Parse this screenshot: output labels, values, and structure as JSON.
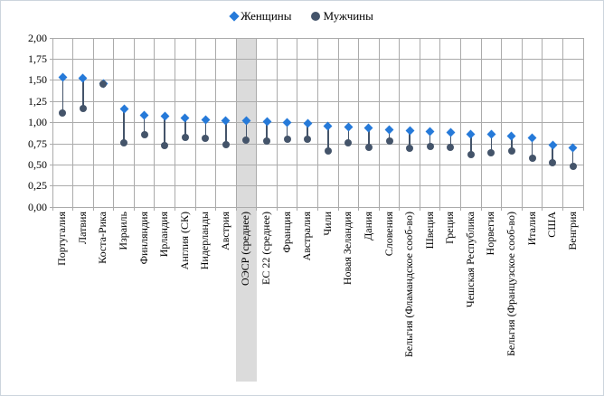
{
  "legend": {
    "women": "Женщины",
    "men": "Мужчины"
  },
  "colors": {
    "women": "#267AD9",
    "men": "#44546A",
    "grid": "#ABABAB",
    "highlight_band": "#DBDBDB",
    "text": "#000000",
    "frame": "#CCD5DD"
  },
  "chart_data": {
    "type": "scatter",
    "title": "",
    "xlabel": "",
    "ylabel": "",
    "ylim": [
      0,
      2
    ],
    "y_step": 0.25,
    "grid": true,
    "legend_position": "top-center",
    "y_ticks": [
      "2,00",
      "1,75",
      "1,50",
      "1,25",
      "1,00",
      "0,75",
      "0,50",
      "0,25",
      "0,00"
    ],
    "highlight_category": "ОЭСР (среднее)",
    "categories": [
      "Португалия",
      "Латвия",
      "Коста-Рика",
      "Израиль",
      "Финляндия",
      "Ирландия",
      "Англия (СК)",
      "Нидерланды",
      "Австрия",
      "ОЭСР (среднее)",
      "ЕС 22 (среднее)",
      "Франция",
      "Австралия",
      "Чили",
      "Новая Зеландия",
      "Дания",
      "Словения",
      "Бельгия (Фламандское сооб-во)",
      "Швеция",
      "Греция",
      "Чешская Республика",
      "Норвегия",
      "Бельгия (Французское сооб-во)",
      "Италия",
      "США",
      "Венгрия"
    ],
    "series": [
      {
        "name": "Женщины",
        "marker": "diamond",
        "values": [
          1.54,
          1.52,
          1.46,
          1.16,
          1.09,
          1.08,
          1.06,
          1.03,
          1.02,
          1.02,
          1.01,
          1.0,
          0.99,
          0.96,
          0.95,
          0.94,
          0.92,
          0.91,
          0.9,
          0.88,
          0.86,
          0.86,
          0.84,
          0.82,
          0.73,
          0.7
        ]
      },
      {
        "name": "Мужчины",
        "marker": "circle",
        "values": [
          1.11,
          1.17,
          1.46,
          0.76,
          0.86,
          0.73,
          0.83,
          0.81,
          0.74,
          0.79,
          0.78,
          0.8,
          0.8,
          0.67,
          0.76,
          0.71,
          0.78,
          0.7,
          0.72,
          0.71,
          0.62,
          0.64,
          0.66,
          0.58,
          0.53,
          0.48
        ]
      }
    ]
  }
}
